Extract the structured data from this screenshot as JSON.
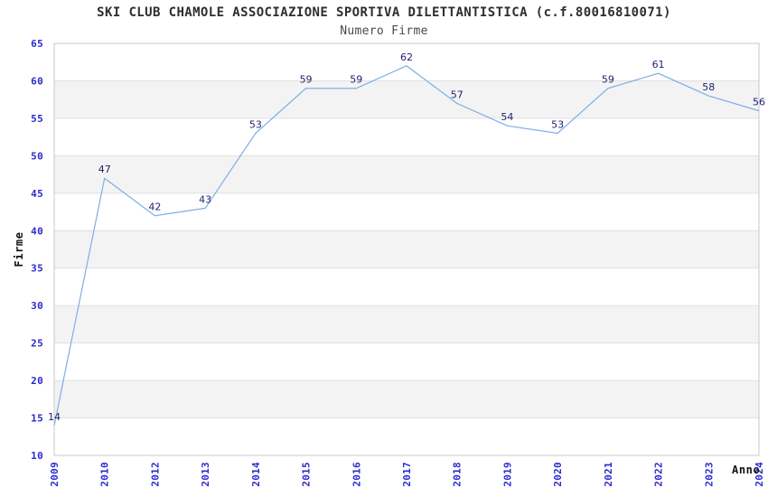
{
  "header": {
    "title": "SKI CLUB CHAMOLE ASSOCIAZIONE SPORTIVA DILETTANTISTICA (c.f.80016810071)",
    "subtitle": "Numero Firme"
  },
  "chart_data": {
    "type": "line",
    "title": "SKI CLUB CHAMOLE ASSOCIAZIONE SPORTIVA DILETTANTISTICA (c.f.80016810071)",
    "subtitle": "Numero Firme",
    "xlabel": "Anno",
    "ylabel": "Firme",
    "categories": [
      "2009",
      "2010",
      "2012",
      "2013",
      "2014",
      "2015",
      "2016",
      "2017",
      "2018",
      "2019",
      "2020",
      "2021",
      "2022",
      "2023",
      "2024"
    ],
    "values": [
      14,
      47,
      42,
      43,
      53,
      59,
      59,
      62,
      57,
      54,
      53,
      59,
      61,
      58,
      56
    ],
    "ylim": [
      10,
      65
    ],
    "ytick_step": 5,
    "yticks": [
      10,
      15,
      20,
      25,
      30,
      35,
      40,
      45,
      50,
      55,
      60,
      65
    ],
    "grid": "horizontal-gridlines-with-alternating-bands",
    "legend": "none",
    "data_labels": "shown-above-points",
    "xtick_rotation_deg": 90,
    "colors": {
      "line": "#7DAFE6",
      "tick_label": "#2A2AD4",
      "data_label": "#1F1F70",
      "band": "#F3F3F3",
      "gridline": "#E0E0E0",
      "plot_border": "#C9C9C9",
      "title": "#2E2E2E",
      "subtitle": "#4A4A4A",
      "axis_title": "#111111",
      "background": "#FFFFFF"
    }
  }
}
